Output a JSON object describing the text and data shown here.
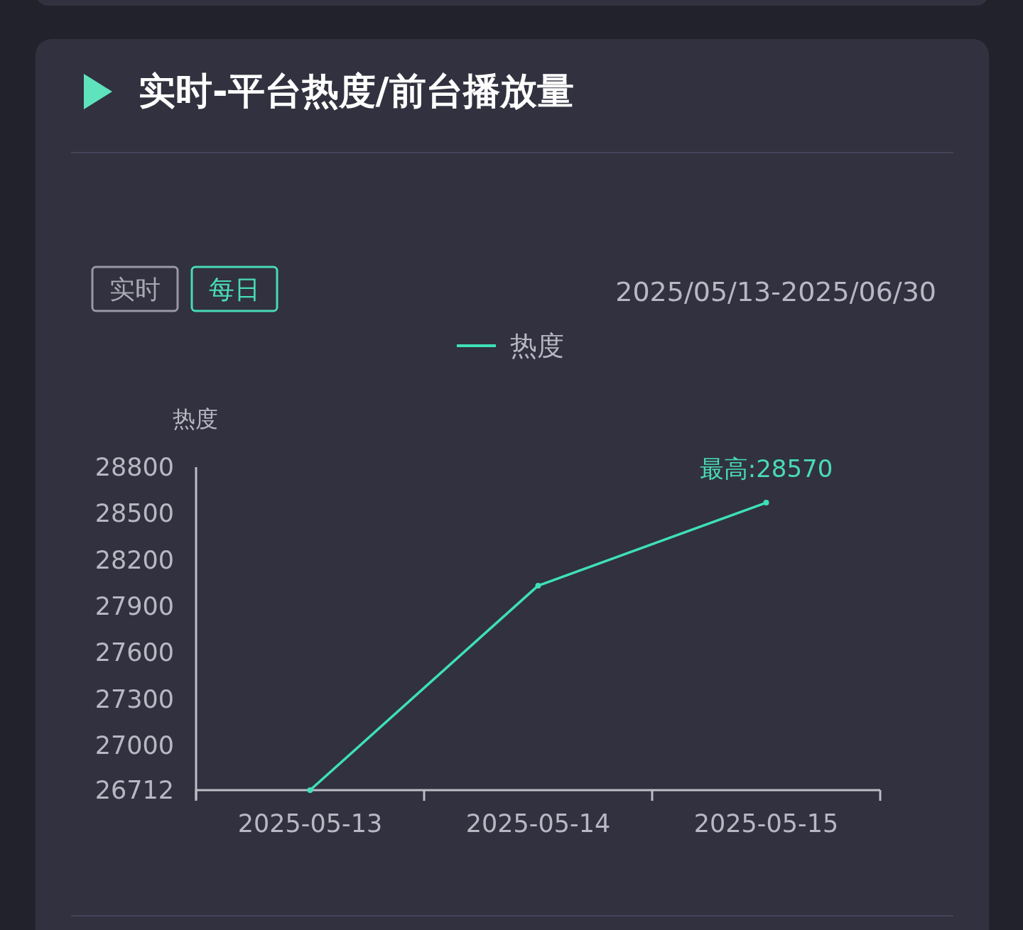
{
  "chart_data": {
    "type": "line",
    "title": "实时-平台热度/前台播放量",
    "subtitle": "2025/05/13-2025/06/30",
    "ylabel": "热度",
    "categories": [
      "2025-05-13",
      "2025-05-14",
      "2025-05-15"
    ],
    "series": [
      {
        "name": "热度",
        "color": "#3ee0b8",
        "values": [
          26712,
          28034,
          28570
        ]
      }
    ],
    "ylim": [
      26712,
      28800
    ],
    "yticks": [
      26712,
      27000,
      27300,
      27600,
      27900,
      28200,
      28500,
      28800
    ],
    "annotations": [
      {
        "text": "最高:28570",
        "x": "2025-05-15",
        "y": 28570
      },
      "实时",
      "每日"
    ],
    "legend": "top",
    "marker": "circle",
    "grid": false,
    "line_style": "solid"
  }
}
